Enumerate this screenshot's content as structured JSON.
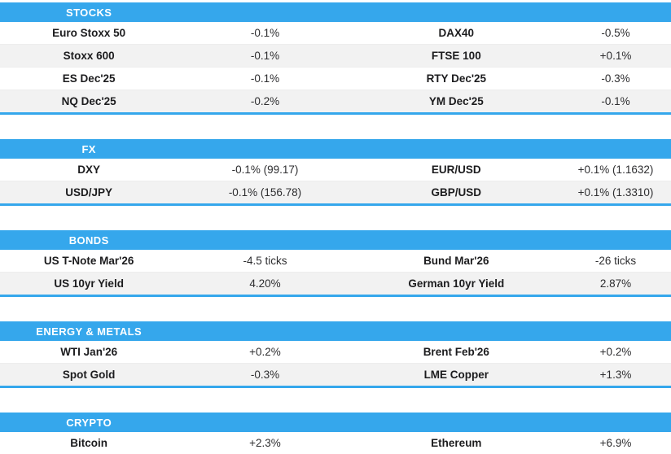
{
  "theme": {
    "accent": "#35a7ec",
    "row_alt": "#f2f2f2",
    "divider": "#ededed",
    "header_text": "#ffffff",
    "label_color": "#1c1c1e",
    "value_color": "#2e2e30"
  },
  "sections": [
    {
      "title": "STOCKS",
      "rows": [
        [
          "Euro Stoxx 50",
          "-0.1%",
          "DAX40",
          "-0.5%"
        ],
        [
          "Stoxx 600",
          "-0.1%",
          "FTSE 100",
          "+0.1%"
        ],
        [
          "ES Dec'25",
          "-0.1%",
          "RTY Dec'25",
          "-0.3%"
        ],
        [
          "NQ Dec'25",
          "-0.2%",
          "YM Dec'25",
          "-0.1%"
        ]
      ]
    },
    {
      "title": "FX",
      "rows": [
        [
          "DXY",
          "-0.1% (99.17)",
          "EUR/USD",
          "+0.1% (1.1632)"
        ],
        [
          "USD/JPY",
          "-0.1% (156.78)",
          "GBP/USD",
          "+0.1% (1.3310)"
        ]
      ]
    },
    {
      "title": "BONDS",
      "rows": [
        [
          "US T-Note Mar'26",
          "-4.5 ticks",
          "Bund Mar'26",
          "-26 ticks"
        ],
        [
          "US 10yr Yield",
          "4.20%",
          "German 10yr Yield",
          "2.87%"
        ]
      ]
    },
    {
      "title": "ENERGY & METALS",
      "rows": [
        [
          "WTI Jan'26",
          "+0.2%",
          "Brent Feb'26",
          "+0.2%"
        ],
        [
          "Spot Gold",
          "-0.3%",
          "LME Copper",
          "+1.3%"
        ]
      ]
    },
    {
      "title": "CRYPTO",
      "rows": [
        [
          "Bitcoin",
          "+2.3%",
          "Ethereum",
          "+6.9%"
        ]
      ]
    }
  ]
}
